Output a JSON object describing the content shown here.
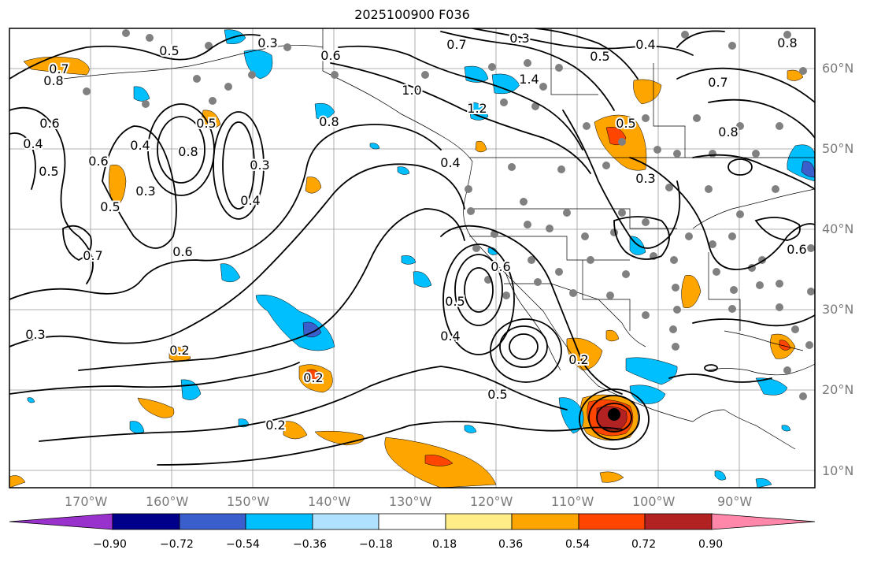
{
  "title": "2025100900 F036",
  "longitude_labels": [
    "170°W",
    "160°W",
    "150°W",
    "140°W",
    "130°W",
    "120°W",
    "110°W",
    "100°W",
    "90°W"
  ],
  "latitude_labels": [
    "60°N",
    "50°N",
    "40°N",
    "30°N",
    "20°N",
    "10°N"
  ],
  "colorbar": {
    "tick_labels": [
      "−0.90",
      "−0.72",
      "−0.54",
      "−0.36",
      "−0.18",
      "0.18",
      "0.36",
      "0.54",
      "0.72",
      "0.90"
    ],
    "colors": [
      "#9932cc",
      "#00008b",
      "#3a5fcd",
      "#00bfff",
      "#b0e2ff",
      "#ffffff",
      "#ffee88",
      "#ffa500",
      "#ff4500",
      "#b22222",
      "#ff88aa"
    ]
  },
  "contour_labels": [
    "0.7",
    "0.8",
    "0.6",
    "0.4",
    "0.5",
    "0.6",
    "0.3",
    "0.5",
    "0.7",
    "0.6",
    "0.3",
    "0.2",
    "0.5",
    "0.4",
    "0.3",
    "0.5",
    "0.4",
    "0.3",
    "1.0",
    "1.2",
    "1.4",
    "0.7",
    "0.8",
    "0.6",
    "0.8",
    "0.5",
    "0.4",
    "0.6",
    "0.5",
    "0.4",
    "0.3",
    "0.6",
    "0.4",
    "0.5",
    "0.8",
    "0.7",
    "0.8",
    "0.5",
    "0.2",
    "0.2",
    "0.2",
    "0.3"
  ]
}
